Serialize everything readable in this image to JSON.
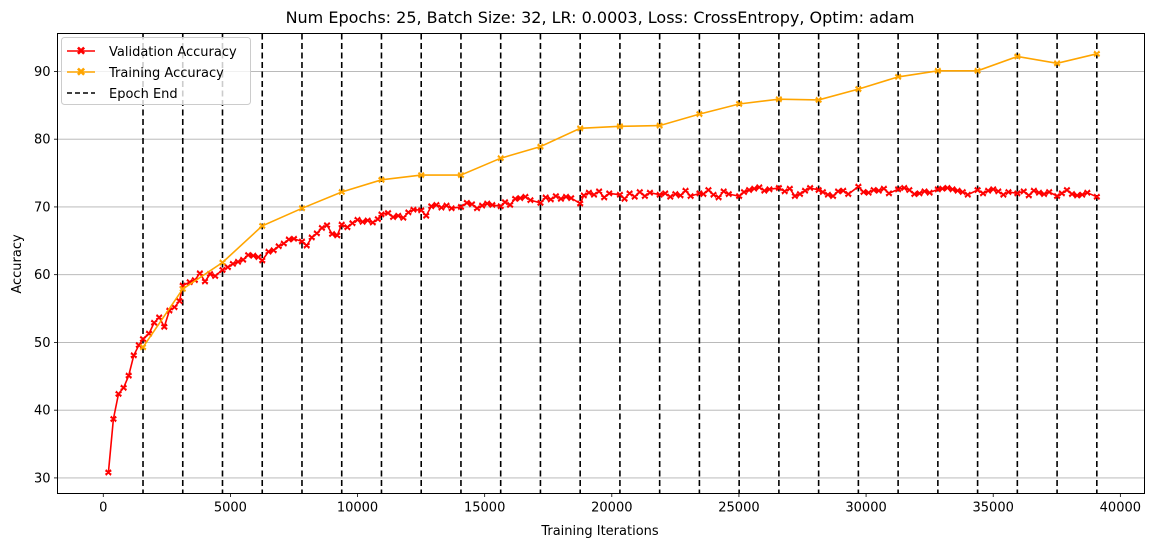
{
  "chart_data": {
    "type": "line",
    "title": "Num Epochs: 25, Batch Size: 32, LR: 0.0003, Loss: CrossEntropy, Optim: adam",
    "xlabel": "Training Iterations",
    "ylabel": "Accuracy",
    "xlim": [
      -1800,
      40950
    ],
    "ylim": [
      27.7,
      95.6
    ],
    "xticks": [
      0,
      5000,
      10000,
      15000,
      20000,
      25000,
      30000,
      35000,
      40000
    ],
    "yticks": [
      30,
      40,
      50,
      60,
      70,
      80,
      90
    ],
    "grid": "y-major",
    "legend_position": "top-left",
    "epoch_ends": [
      1563,
      3126,
      4689,
      6252,
      7815,
      9378,
      10941,
      12504,
      14067,
      15630,
      17193,
      18756,
      20319,
      21882,
      23445,
      25008,
      26571,
      28134,
      29697,
      31260,
      32823,
      34386,
      35949,
      37512,
      39075
    ],
    "series": [
      {
        "name": "Validation Accuracy",
        "color": "#ff0000",
        "marker": "X",
        "x": [
          200,
          400,
          600,
          800,
          1000,
          1200,
          1400,
          1563,
          1800,
          2000,
          2200,
          2400,
          2600,
          2800,
          3000,
          3126,
          3400,
          3600,
          3800,
          4000,
          4200,
          4400,
          4689,
          4900,
          5100,
          5300,
          5500,
          5700,
          5900,
          6100,
          6252,
          6500,
          6700,
          6900,
          7100,
          7300,
          7500,
          7815,
          8000,
          8200,
          8400,
          8600,
          8800,
          9000,
          9200,
          9378,
          9600,
          9800,
          10000,
          10200,
          10400,
          10600,
          10800,
          10941,
          11200,
          11400,
          11600,
          11800,
          12000,
          12200,
          12504,
          12700,
          12900,
          13100,
          13300,
          13500,
          13700,
          14067,
          14300,
          14500,
          14700,
          14900,
          15100,
          15300,
          15630,
          15800,
          16000,
          16200,
          16400,
          16600,
          16800,
          17193,
          17400,
          17600,
          17800,
          18000,
          18200,
          18400,
          18756,
          18900,
          19100,
          19300,
          19500,
          19700,
          19900,
          20319,
          20500,
          20700,
          20900,
          21100,
          21300,
          21500,
          21882,
          22100,
          22300,
          22500,
          22700,
          22900,
          23100,
          23445,
          23600,
          23800,
          24000,
          24200,
          24400,
          24600,
          25008,
          25200,
          25400,
          25600,
          25800,
          26000,
          26200,
          26571,
          26800,
          27000,
          27200,
          27400,
          27600,
          27800,
          28134,
          28300,
          28500,
          28700,
          28900,
          29100,
          29300,
          29697,
          29900,
          30100,
          30300,
          30500,
          30700,
          30900,
          31260,
          31500,
          31700,
          31900,
          32100,
          32300,
          32500,
          32823,
          33000,
          33200,
          33400,
          33600,
          33800,
          34000,
          34386,
          34600,
          34800,
          35000,
          35200,
          35400,
          35600,
          35949,
          36200,
          36400,
          36600,
          36800,
          37000,
          37200,
          37512,
          37700,
          37900,
          38100,
          38300,
          38500,
          38700,
          39075
        ],
        "values": [
          30.8,
          38.7,
          42.4,
          43.3,
          45.1,
          48.1,
          49.6,
          50.5,
          51.3,
          52.9,
          53.7,
          52.3,
          54.7,
          55.2,
          56.1,
          58.4,
          58.9,
          59.2,
          60.2,
          59.0,
          60.1,
          59.8,
          60.7,
          61.1,
          61.6,
          61.9,
          62.2,
          62.9,
          62.8,
          62.6,
          62.1,
          63.4,
          63.6,
          64.2,
          64.6,
          65.2,
          65.3,
          64.9,
          64.3,
          65.5,
          66.1,
          66.9,
          67.3,
          66.0,
          65.8,
          67.4,
          67.0,
          67.6,
          68.1,
          67.8,
          68.0,
          67.7,
          68.2,
          68.9,
          69.1,
          68.5,
          68.7,
          68.4,
          69.2,
          69.6,
          69.5,
          68.7,
          70.1,
          70.3,
          69.9,
          70.2,
          69.8,
          70.0,
          70.6,
          70.4,
          69.8,
          70.2,
          70.5,
          70.3,
          70.1,
          70.7,
          70.3,
          71.2,
          71.3,
          71.5,
          71.0,
          70.6,
          71.4,
          71.1,
          71.6,
          71.2,
          71.5,
          71.3,
          70.5,
          71.7,
          72.1,
          71.8,
          72.3,
          71.4,
          72.0,
          71.8,
          71.2,
          72.0,
          71.5,
          72.2,
          71.6,
          72.1,
          71.8,
          72.0,
          71.5,
          71.9,
          71.7,
          72.4,
          71.6,
          72.0,
          71.9,
          72.5,
          71.8,
          71.4,
          72.3,
          71.9,
          71.6,
          72.2,
          72.5,
          72.7,
          72.9,
          72.4,
          72.6,
          72.8,
          72.3,
          72.7,
          71.6,
          71.9,
          72.4,
          72.8,
          72.5,
          72.2,
          71.8,
          71.6,
          72.3,
          72.4,
          71.9,
          73.0,
          72.2,
          72.1,
          72.5,
          72.4,
          72.7,
          72.0,
          72.6,
          72.8,
          72.5,
          71.9,
          72.0,
          72.3,
          72.1,
          72.6,
          72.7,
          72.8,
          72.6,
          72.4,
          72.2,
          71.8,
          72.5,
          72.0,
          72.4,
          72.6,
          72.3,
          71.8,
          72.2,
          72.0,
          72.3,
          71.7,
          72.4,
          72.1,
          71.9,
          72.2,
          71.6,
          72.0,
          72.5,
          71.9,
          71.7,
          71.8,
          72.1,
          71.5
        ]
      },
      {
        "name": "Training Accuracy",
        "color": "#ffa500",
        "marker": "X",
        "x": [
          1563,
          3126,
          4689,
          6252,
          7815,
          9378,
          10941,
          12504,
          14067,
          15630,
          17193,
          18756,
          20319,
          21882,
          23445,
          25008,
          26571,
          28134,
          29697,
          31260,
          32823,
          34386,
          35949,
          37512,
          39075
        ],
        "values": [
          49.3,
          57.9,
          61.8,
          67.2,
          69.8,
          72.2,
          74.0,
          74.7,
          74.7,
          77.2,
          78.9,
          81.6,
          81.9,
          82.0,
          83.7,
          85.2,
          85.9,
          85.8,
          87.4,
          89.2,
          90.1,
          90.1,
          92.2,
          91.2,
          92.6
        ]
      }
    ],
    "legend": [
      {
        "label": "Validation Accuracy",
        "color": "#ff0000",
        "style": "solid-marker"
      },
      {
        "label": "Training Accuracy",
        "color": "#ffa500",
        "style": "solid-marker"
      },
      {
        "label": "Epoch End",
        "color": "#000000",
        "style": "dashed"
      }
    ]
  }
}
